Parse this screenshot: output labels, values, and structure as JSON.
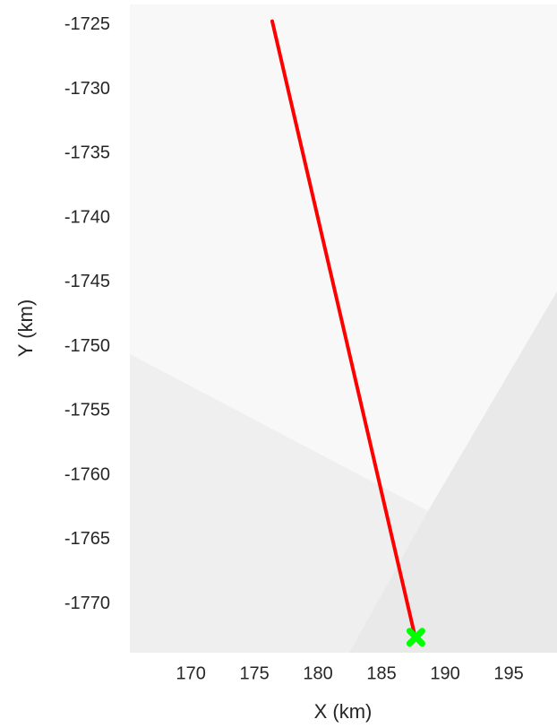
{
  "chart_data": {
    "type": "line",
    "xlabel": "X (km)",
    "ylabel": "Y (km)",
    "series": [
      {
        "x": [
          176.4,
          187.6
        ],
        "values": [
          -1724.7,
          -1772.4
        ],
        "color": "#ff0000"
      }
    ],
    "marker": {
      "x": 187.7,
      "y": -1772.6,
      "color": "#00ff00"
    },
    "xlim": [
      165.2,
      198.8
    ],
    "xticks": [
      170,
      175,
      180,
      185,
      190,
      195
    ],
    "ylim": [
      -1773.8,
      -1723.4
    ],
    "yticks": [
      -1725,
      -1730,
      -1735,
      -1740,
      -1745,
      -1750,
      -1755,
      -1760,
      -1765,
      -1770
    ],
    "grid": false
  }
}
